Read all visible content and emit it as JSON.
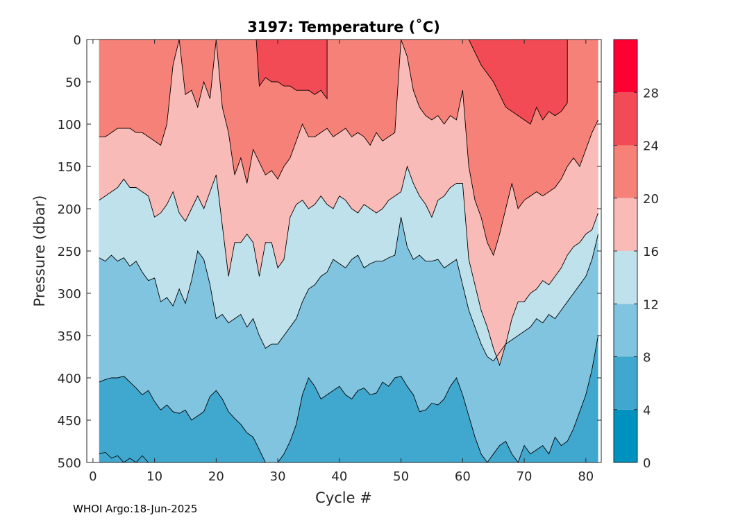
{
  "chart_data": {
    "type": "filled-contour",
    "title": "3197:  Temperature (˚C)",
    "xlabel": "Cycle #",
    "ylabel": "Pressure (dbar)",
    "xlim": [
      -1,
      82.5
    ],
    "ylim": [
      0,
      500
    ],
    "y_reversed": true,
    "xticks": [
      0,
      10,
      20,
      30,
      40,
      50,
      60,
      70,
      80
    ],
    "yticks": [
      0,
      50,
      100,
      150,
      200,
      250,
      300,
      350,
      400,
      450,
      500
    ],
    "data_x_range": [
      1,
      82
    ],
    "levels": [
      0,
      4,
      8,
      12,
      16,
      20,
      24,
      28,
      32
    ],
    "level_colors": [
      "#0092be",
      "#40a8cf",
      "#80c4df",
      "#bfe1ec",
      "#f9bbb7",
      "#f58178",
      "#f34b55",
      "#ff0032"
    ],
    "colorbar": {
      "ticks": [
        0,
        4,
        8,
        12,
        16,
        20,
        24,
        28
      ],
      "range": [
        0,
        32
      ]
    },
    "contours": [
      {
        "level": 24,
        "segments": [
          {
            "x": [
              26.5,
              27,
              28,
              29,
              30,
              31,
              32,
              33,
              34,
              35,
              36,
              37,
              38,
              38,
              26.5
            ],
            "p": [
              0,
              55,
              45,
              50,
              50,
              55,
              55,
              60,
              60,
              60,
              65,
              60,
              70,
              0,
              0
            ]
          },
          {
            "x": [
              61,
              63,
              65,
              67,
              69,
              71,
              72,
              73,
              74,
              75,
              76,
              77,
              77,
              61
            ],
            "p": [
              0,
              30,
              50,
              80,
              90,
              100,
              80,
              95,
              85,
              90,
              85,
              75,
              0,
              0
            ]
          }
        ]
      },
      {
        "level": 20,
        "x": [
          1,
          2,
          3,
          4,
          5,
          6,
          7,
          8,
          9,
          10,
          11,
          12,
          13,
          14,
          15,
          16,
          17,
          18,
          19,
          20,
          21,
          22,
          23,
          24,
          25,
          26,
          27,
          28,
          29,
          30,
          31,
          32,
          33,
          34,
          35,
          36,
          37,
          38,
          39,
          40,
          41,
          42,
          43,
          44,
          45,
          46,
          47,
          48,
          49,
          50,
          51,
          52,
          53,
          54,
          55,
          56,
          57,
          58,
          59,
          60,
          61,
          62,
          63,
          64,
          65,
          66,
          67,
          68,
          69,
          70,
          71,
          72,
          73,
          74,
          75,
          76,
          77,
          78,
          79,
          80,
          81,
          82
        ],
        "p": [
          115,
          115,
          110,
          105,
          105,
          105,
          110,
          110,
          115,
          120,
          125,
          100,
          30,
          0,
          65,
          60,
          80,
          50,
          70,
          0,
          80,
          110,
          160,
          140,
          170,
          130,
          145,
          160,
          155,
          165,
          150,
          140,
          120,
          100,
          115,
          115,
          110,
          105,
          115,
          110,
          105,
          115,
          110,
          115,
          125,
          110,
          120,
          115,
          110,
          0,
          20,
          60,
          80,
          90,
          95,
          90,
          100,
          90,
          95,
          60,
          150,
          190,
          210,
          240,
          255,
          230,
          200,
          170,
          200,
          190,
          185,
          180,
          185,
          180,
          175,
          165,
          150,
          140,
          150,
          130,
          110,
          95
        ]
      },
      {
        "level": 16,
        "x": [
          1,
          2,
          3,
          4,
          5,
          6,
          7,
          8,
          9,
          10,
          11,
          12,
          13,
          14,
          15,
          16,
          17,
          18,
          19,
          20,
          21,
          22,
          23,
          24,
          25,
          26,
          27,
          28,
          29,
          30,
          31,
          32,
          33,
          34,
          35,
          36,
          37,
          38,
          39,
          40,
          41,
          42,
          43,
          44,
          45,
          46,
          47,
          48,
          49,
          50,
          51,
          52,
          53,
          54,
          55,
          56,
          57,
          58,
          59,
          60,
          61,
          62,
          63,
          64,
          65,
          66,
          67,
          68,
          69,
          70,
          71,
          72,
          73,
          74,
          75,
          76,
          77,
          78,
          79,
          80,
          81,
          82
        ],
        "p": [
          190,
          185,
          180,
          175,
          165,
          175,
          175,
          180,
          185,
          210,
          205,
          195,
          180,
          205,
          215,
          200,
          185,
          200,
          180,
          160,
          220,
          280,
          240,
          240,
          230,
          240,
          280,
          240,
          240,
          270,
          260,
          210,
          195,
          190,
          200,
          195,
          185,
          195,
          200,
          185,
          190,
          200,
          205,
          195,
          200,
          205,
          200,
          190,
          185,
          180,
          150,
          170,
          185,
          195,
          210,
          190,
          185,
          175,
          170,
          170,
          260,
          290,
          320,
          340,
          365,
          385,
          360,
          330,
          310,
          310,
          300,
          295,
          285,
          290,
          280,
          270,
          255,
          245,
          240,
          230,
          225,
          205
        ]
      },
      {
        "level": 12,
        "x": [
          1,
          2,
          3,
          4,
          5,
          6,
          7,
          8,
          9,
          10,
          11,
          12,
          13,
          14,
          15,
          16,
          17,
          18,
          19,
          20,
          21,
          22,
          23,
          24,
          25,
          26,
          27,
          28,
          29,
          30,
          31,
          32,
          33,
          34,
          35,
          36,
          37,
          38,
          39,
          40,
          41,
          42,
          43,
          44,
          45,
          46,
          47,
          48,
          49,
          50,
          51,
          52,
          53,
          54,
          55,
          56,
          57,
          58,
          59,
          60,
          61,
          62,
          63,
          64,
          65,
          66,
          67,
          68,
          69,
          70,
          71,
          72,
          73,
          74,
          75,
          76,
          77,
          78,
          79,
          80,
          81,
          82
        ],
        "p": [
          258,
          262,
          255,
          262,
          258,
          268,
          262,
          275,
          285,
          282,
          310,
          305,
          315,
          295,
          312,
          285,
          250,
          260,
          290,
          330,
          325,
          335,
          330,
          325,
          340,
          330,
          350,
          365,
          360,
          360,
          350,
          340,
          330,
          310,
          295,
          290,
          280,
          275,
          260,
          265,
          270,
          260,
          255,
          270,
          265,
          262,
          262,
          258,
          255,
          210,
          245,
          260,
          255,
          262,
          262,
          260,
          270,
          265,
          260,
          290,
          320,
          340,
          360,
          375,
          380,
          370,
          360,
          355,
          350,
          345,
          340,
          330,
          335,
          325,
          330,
          320,
          310,
          300,
          290,
          280,
          260,
          230
        ]
      },
      {
        "level": 8,
        "x": [
          1,
          2,
          3,
          4,
          5,
          6,
          7,
          8,
          9,
          10,
          11,
          12,
          13,
          14,
          15,
          16,
          17,
          18,
          19,
          20,
          21,
          22,
          23,
          24,
          25,
          26,
          27,
          28,
          29,
          30,
          31,
          32,
          33,
          34,
          35,
          36,
          37,
          38,
          39,
          40,
          41,
          42,
          43,
          44,
          45,
          46,
          47,
          48,
          49,
          50,
          51,
          52,
          53,
          54,
          55,
          56,
          57,
          58,
          59,
          60,
          61,
          62,
          63,
          64,
          65,
          66,
          67,
          68,
          69,
          70,
          71,
          72,
          73,
          74,
          75,
          76,
          77,
          78,
          79,
          80,
          81,
          82
        ],
        "p": [
          405,
          402,
          400,
          400,
          398,
          405,
          412,
          420,
          415,
          428,
          438,
          432,
          440,
          442,
          438,
          450,
          445,
          440,
          422,
          415,
          425,
          440,
          448,
          455,
          465,
          470,
          485,
          500,
          500,
          500,
          490,
          475,
          455,
          420,
          400,
          410,
          425,
          420,
          415,
          410,
          420,
          425,
          415,
          412,
          420,
          418,
          405,
          410,
          400,
          398,
          410,
          420,
          440,
          438,
          430,
          432,
          425,
          410,
          400,
          420,
          445,
          470,
          490,
          500,
          490,
          480,
          475,
          490,
          500,
          480,
          490,
          485,
          480,
          490,
          470,
          480,
          475,
          460,
          440,
          420,
          390,
          350
        ]
      },
      {
        "level": 4,
        "segments": [
          {
            "x": [
              1,
              2,
              3,
              4,
              5,
              6,
              7,
              8,
              9
            ],
            "p": [
              490,
              488,
              495,
              492,
              500,
              495,
              500,
              492,
              500
            ]
          }
        ]
      }
    ]
  }
}
